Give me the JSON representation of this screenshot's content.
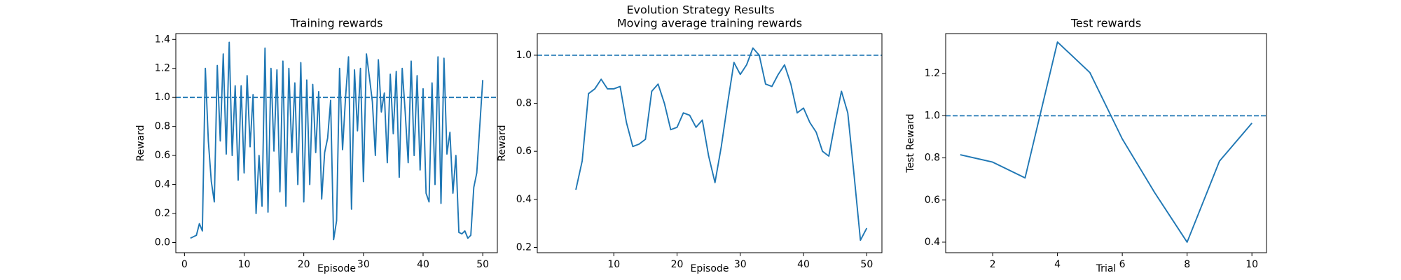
{
  "suptitle": "Evolution Strategy Results",
  "chart_data": [
    {
      "type": "line",
      "title": "Training rewards",
      "xlabel": "Episode",
      "ylabel": "Reward",
      "x": [
        1,
        1.5,
        2,
        2.5,
        3,
        3.5,
        4,
        4.5,
        5,
        5.5,
        6,
        6.5,
        7,
        7.5,
        8,
        8.5,
        9,
        9.5,
        10,
        10.5,
        11,
        11.5,
        12,
        12.5,
        13,
        13.5,
        14,
        14.5,
        15,
        15.5,
        16,
        16.5,
        17,
        17.5,
        18,
        18.5,
        19,
        19.5,
        20,
        20.5,
        21,
        21.5,
        22,
        22.5,
        23,
        23.5,
        24,
        24.5,
        25,
        25.5,
        26,
        26.5,
        27,
        27.5,
        28,
        28.5,
        29,
        29.5,
        30,
        30.5,
        31,
        31.5,
        32,
        32.5,
        33,
        33.5,
        34,
        34.5,
        35,
        35.5,
        36,
        36.5,
        37,
        37.5,
        38,
        38.5,
        39,
        39.5,
        40,
        40.5,
        41,
        41.5,
        42,
        42.5,
        43,
        43.5,
        44,
        44.5,
        45,
        45.5,
        46,
        46.5,
        47,
        47.5,
        48,
        48.5,
        49,
        49.5,
        50
      ],
      "values": [
        0.03,
        0.04,
        0.05,
        0.13,
        0.08,
        1.2,
        0.7,
        0.42,
        0.28,
        1.22,
        0.7,
        1.3,
        0.61,
        1.38,
        0.6,
        1.08,
        0.43,
        1.08,
        0.48,
        1.15,
        0.66,
        1.02,
        0.2,
        0.6,
        0.25,
        1.34,
        0.21,
        1.2,
        0.63,
        1.19,
        0.35,
        1.25,
        0.25,
        1.2,
        0.62,
        1.1,
        0.4,
        1.24,
        0.28,
        1.12,
        0.4,
        1.09,
        0.62,
        1.04,
        0.3,
        0.62,
        0.72,
        0.98,
        0.02,
        0.15,
        1.2,
        0.64,
        1.0,
        1.28,
        0.23,
        1.19,
        0.77,
        1.2,
        0.42,
        1.3,
        1.14,
        0.97,
        0.6,
        1.26,
        0.9,
        1.03,
        0.55,
        1.16,
        0.75,
        1.18,
        0.45,
        1.2,
        0.9,
        0.55,
        1.25,
        0.6,
        1.15,
        0.5,
        1.06,
        0.34,
        0.28,
        1.1,
        0.4,
        1.28,
        0.27,
        1.27,
        0.61,
        0.76,
        0.34,
        0.6,
        0.07,
        0.06,
        0.08,
        0.03,
        0.05,
        0.38,
        0.48,
        0.8,
        1.12
      ],
      "color": "#1f77b4",
      "reference_line": 1.0,
      "xlim": [
        -1.45,
        52.45
      ],
      "ylim": [
        -0.07,
        1.44
      ],
      "xticks": [
        0,
        10,
        20,
        30,
        40,
        50
      ],
      "yticks": [
        {
          "value": 0,
          "label": "0.0"
        },
        0.2,
        0.4,
        0.6,
        0.8,
        {
          "value": 1,
          "label": "1.0"
        },
        1.2,
        1.4
      ]
    },
    {
      "type": "line",
      "title": "Moving average training rewards",
      "xlabel": "Episode",
      "ylabel": "Reward",
      "x": [
        4,
        5,
        6,
        7,
        8,
        9,
        10,
        11,
        12,
        13,
        14,
        15,
        16,
        17,
        18,
        19,
        20,
        21,
        22,
        23,
        24,
        25,
        26,
        27,
        28,
        29,
        30,
        31,
        32,
        33,
        34,
        35,
        36,
        37,
        38,
        39,
        40,
        41,
        42,
        43,
        44,
        45,
        46,
        47,
        48,
        49,
        50
      ],
      "values": [
        0.44,
        0.56,
        0.84,
        0.86,
        0.9,
        0.86,
        0.86,
        0.87,
        0.72,
        0.62,
        0.63,
        0.65,
        0.85,
        0.88,
        0.8,
        0.69,
        0.7,
        0.76,
        0.75,
        0.7,
        0.73,
        0.58,
        0.47,
        0.62,
        0.8,
        0.97,
        0.92,
        0.96,
        1.03,
        1.0,
        0.88,
        0.87,
        0.92,
        0.96,
        0.88,
        0.76,
        0.78,
        0.72,
        0.68,
        0.6,
        0.58,
        0.72,
        0.85,
        0.76,
        0.5,
        0.23,
        0.28
      ],
      "color": "#1f77b4",
      "reference_line": 1.0,
      "xlim": [
        -2.1,
        52.4
      ],
      "ylim": [
        0.178,
        1.09
      ],
      "xticks": [
        10,
        20,
        30,
        40,
        50
      ],
      "yticks": [
        0.2,
        0.4,
        0.6,
        0.8,
        {
          "value": 1,
          "label": "1.0"
        }
      ]
    },
    {
      "type": "line",
      "title": "Test rewards",
      "xlabel": "Trial",
      "ylabel": "Test Reward",
      "x": [
        1,
        2,
        3,
        4,
        5,
        6,
        7,
        8,
        9,
        10
      ],
      "values": [
        0.815,
        0.78,
        0.705,
        1.35,
        1.205,
        0.89,
        0.635,
        0.4,
        0.785,
        0.965
      ],
      "color": "#1f77b4",
      "reference_line": 1.0,
      "xlim": [
        0.55,
        10.45
      ],
      "ylim": [
        0.35,
        1.39
      ],
      "xticks": [
        2,
        4,
        6,
        8,
        10
      ],
      "yticks": [
        0.4,
        0.6,
        0.8,
        {
          "value": 1,
          "label": "1.0"
        },
        1.2
      ]
    }
  ]
}
